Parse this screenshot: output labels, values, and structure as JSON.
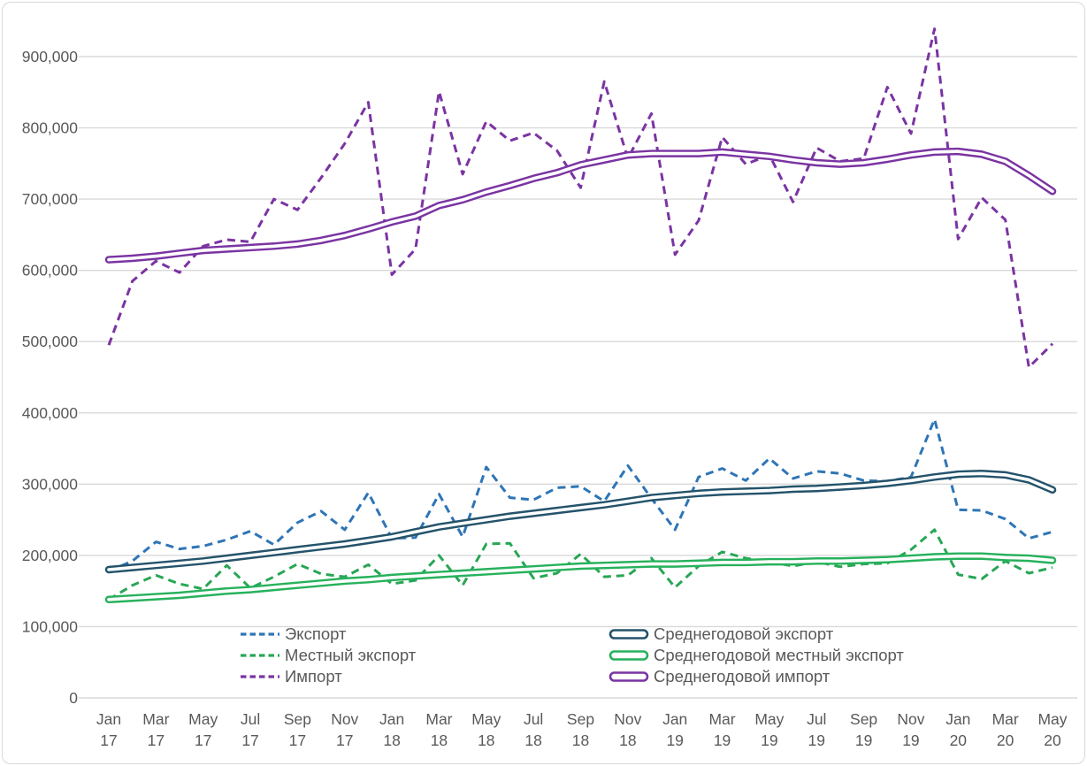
{
  "chart_data": {
    "type": "line",
    "title": "",
    "xlabel": "",
    "ylabel": "",
    "grid": true,
    "legend_position": "bottom-inside-two-columns",
    "y_axis": {
      "min": 0,
      "max": 900000,
      "step": 100000,
      "tick_labels": [
        "0",
        "100,000",
        "200,000",
        "300,000",
        "400,000",
        "500,000",
        "600,000",
        "700,000",
        "800,000",
        "900,000"
      ]
    },
    "x_axis": {
      "months_total": 41,
      "tick_every": 2,
      "tick_labels": [
        {
          "month": "Jan",
          "year": "17"
        },
        {
          "month": "Mar",
          "year": "17"
        },
        {
          "month": "May",
          "year": "17"
        },
        {
          "month": "Jul",
          "year": "17"
        },
        {
          "month": "Sep",
          "year": "17"
        },
        {
          "month": "Nov",
          "year": "17"
        },
        {
          "month": "Jan",
          "year": "18"
        },
        {
          "month": "Mar",
          "year": "18"
        },
        {
          "month": "May",
          "year": "18"
        },
        {
          "month": "Jul",
          "year": "18"
        },
        {
          "month": "Sep",
          "year": "18"
        },
        {
          "month": "Nov",
          "year": "18"
        },
        {
          "month": "Jan",
          "year": "19"
        },
        {
          "month": "Mar",
          "year": "19"
        },
        {
          "month": "May",
          "year": "19"
        },
        {
          "month": "Jul",
          "year": "19"
        },
        {
          "month": "Sep",
          "year": "19"
        },
        {
          "month": "Nov",
          "year": "19"
        },
        {
          "month": "Jan",
          "year": "20"
        },
        {
          "month": "Mar",
          "year": "20"
        },
        {
          "month": "May",
          "year": "20"
        }
      ]
    },
    "colors": {
      "grid": "#D9D9D9",
      "axis_text": "#595959",
      "border": "#D9D9D9",
      "background": "#FFFFFF"
    },
    "series": [
      {
        "id": "export",
        "name": "Экспорт",
        "style": "dashed",
        "color": "#2E75B6",
        "values": [
          178000,
          192000,
          219000,
          209000,
          213000,
          222000,
          234000,
          215000,
          246000,
          262000,
          236000,
          288000,
          224000,
          225000,
          286000,
          226000,
          324000,
          281000,
          278000,
          295000,
          297000,
          276000,
          326000,
          280000,
          236000,
          310000,
          322000,
          305000,
          336000,
          308000,
          318000,
          315000,
          305000,
          304000,
          310000,
          391000,
          264000,
          263000,
          251000,
          224000,
          233000
        ]
      },
      {
        "id": "local_export",
        "name": "Местный экспорт",
        "style": "dashed",
        "color": "#28A655",
        "values": [
          138000,
          158000,
          172000,
          160000,
          153000,
          186000,
          154000,
          170000,
          188000,
          174000,
          170000,
          187000,
          160000,
          165000,
          200000,
          158000,
          216000,
          217000,
          168000,
          175000,
          202000,
          170000,
          172000,
          196000,
          155000,
          185000,
          205000,
          196000,
          191000,
          185000,
          191000,
          184000,
          188000,
          189000,
          208000,
          236000,
          173000,
          167000,
          192000,
          175000,
          183000
        ]
      },
      {
        "id": "import",
        "name": "Импорт",
        "style": "dashed",
        "color": "#7A34A2",
        "values": [
          495000,
          585000,
          613000,
          597000,
          634000,
          643000,
          640000,
          700000,
          685000,
          730000,
          778000,
          836000,
          594000,
          630000,
          851000,
          735000,
          809000,
          782000,
          793000,
          768000,
          716000,
          865000,
          757000,
          820000,
          622000,
          670000,
          787000,
          749000,
          762000,
          696000,
          772000,
          753000,
          757000,
          857000,
          792000,
          939000,
          644000,
          702000,
          671000,
          464000,
          497000
        ]
      },
      {
        "id": "avg_export",
        "name": "Среднегодовой экспорт",
        "style": "outlined",
        "color": "#24536B",
        "values": [
          180000,
          183000,
          186000,
          189000,
          192000,
          196000,
          200000,
          204000,
          208000,
          212000,
          216000,
          221000,
          226000,
          233000,
          240000,
          245000,
          250000,
          255000,
          259000,
          263000,
          267000,
          271000,
          276000,
          281000,
          284000,
          287000,
          289000,
          290000,
          291000,
          293000,
          294000,
          296000,
          298000,
          301000,
          305000,
          310000,
          314000,
          315000,
          313000,
          306000,
          292000
        ]
      },
      {
        "id": "avg_local_export",
        "name": "Среднегодовой местный экспорт",
        "style": "outlined",
        "color": "#27B15C",
        "values": [
          138000,
          140000,
          142000,
          144000,
          147000,
          150000,
          152000,
          155000,
          158000,
          161000,
          164000,
          166000,
          169000,
          171000,
          173000,
          175000,
          177000,
          179000,
          181000,
          183000,
          185000,
          186000,
          187000,
          188000,
          188000,
          189000,
          190000,
          190000,
          191000,
          191000,
          192000,
          192000,
          193000,
          194000,
          196000,
          198000,
          199000,
          199000,
          197000,
          196000,
          193000
        ]
      },
      {
        "id": "avg_import",
        "name": "Среднегодовой импорт",
        "style": "outlined",
        "color": "#7A34A2",
        "values": [
          615000,
          617000,
          620000,
          624000,
          628000,
          630000,
          632000,
          634000,
          637000,
          642000,
          649000,
          658000,
          668000,
          676000,
          691000,
          699000,
          710000,
          719000,
          729000,
          737000,
          748000,
          755000,
          762000,
          764000,
          764000,
          764000,
          766000,
          763000,
          760000,
          755000,
          751000,
          749000,
          751000,
          756000,
          762000,
          766000,
          767000,
          763000,
          753000,
          733000,
          711000
        ]
      }
    ],
    "legend": {
      "columns": [
        [
          "export",
          "local_export",
          "import"
        ],
        [
          "avg_export",
          "avg_local_export",
          "avg_import"
        ]
      ]
    }
  }
}
